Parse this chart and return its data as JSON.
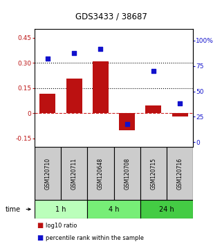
{
  "title": "GDS3433 / 38687",
  "samples": [
    "GSM120710",
    "GSM120711",
    "GSM120648",
    "GSM120708",
    "GSM120715",
    "GSM120716"
  ],
  "log10_ratio": [
    0.115,
    0.205,
    0.31,
    -0.1,
    0.045,
    -0.02
  ],
  "percentile_rank": [
    82,
    88,
    92,
    18,
    70,
    38
  ],
  "time_groups": [
    {
      "label": "1 h",
      "span": [
        0,
        2
      ],
      "color": "#bbffbb"
    },
    {
      "label": "4 h",
      "span": [
        2,
        4
      ],
      "color": "#77ee77"
    },
    {
      "label": "24 h",
      "span": [
        4,
        6
      ],
      "color": "#44cc44"
    }
  ],
  "bar_color": "#bb1111",
  "dot_color": "#1111cc",
  "ylim_left": [
    -0.2,
    0.5
  ],
  "ylim_right": [
    -4.44,
    111.11
  ],
  "yticks_left": [
    -0.15,
    0.0,
    0.15,
    0.3,
    0.45
  ],
  "ytick_labels_left": [
    "-0.15",
    "0",
    "0.15",
    "0.30",
    "0.45"
  ],
  "yticks_right": [
    0,
    25,
    50,
    75,
    100
  ],
  "ytick_labels_right": [
    "0",
    "25",
    "50",
    "75",
    "100%"
  ],
  "hlines": [
    0.15,
    0.3
  ],
  "zero_line_color": "#cc2222",
  "dotted_line_color": "#000000",
  "background_color": "#ffffff",
  "sample_box_color": "#cccccc",
  "bar_width": 0.6
}
